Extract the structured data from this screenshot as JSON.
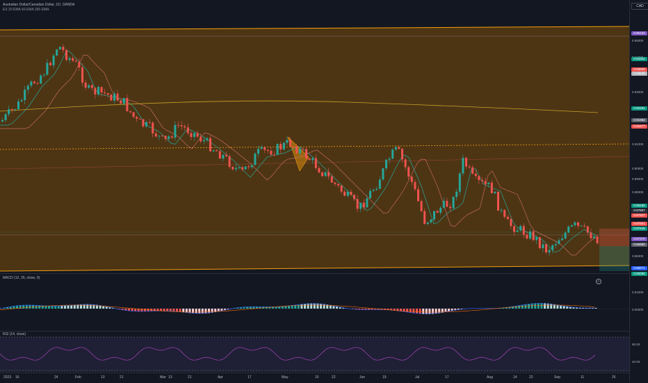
{
  "header": {
    "symbol_line": "Australian Dollar/Canadian Dollar, 1D, OANDA",
    "indicator_line": "EX 20 EMA 50 EMA 200 EMA"
  },
  "currency": "CAD",
  "colors": {
    "up": "#26a69a",
    "down": "#ef5350",
    "band_fill": "#5c3d12",
    "band_edge": "#f59e0b"
  },
  "price_badges": [
    {
      "label": "0.95134",
      "color": "#7e57c2"
    },
    {
      "label": "0.94304",
      "color": "#089981"
    },
    {
      "label": "0.93858",
      "color": "#ef5350"
    },
    {
      "label": "0.93645",
      "color": "#b2b5be"
    },
    {
      "label": "0.92281",
      "color": "#089981"
    },
    {
      "label": "0.91982",
      "color": "#5d606b"
    },
    {
      "label": "0.91577",
      "color": "#ef5350"
    },
    {
      "label": "0.88186",
      "color": "#089981"
    },
    {
      "label": "0.87857",
      "color": "#2a2e39"
    },
    {
      "label": "0.87827",
      "color": "#ef5350"
    },
    {
      "label": "0.87601",
      "color": "#ef5350"
    },
    {
      "label": "0.87545",
      "color": "#089981"
    },
    {
      "label": "0.87370",
      "color": "#7e57c2"
    },
    {
      "label": "0.86880",
      "color": "#5d606b"
    },
    {
      "label": "0.85571",
      "color": "#2962ff"
    },
    {
      "label": "0.85080",
      "color": "#089981"
    }
  ],
  "price_ticks": [
    "0.95000",
    "0.94000",
    "0.93000",
    "0.92000",
    "0.91000",
    "0.90000",
    "0.89000",
    "0.88000",
    "0.86000"
  ],
  "macd": {
    "title": "MACD (12, 26, close, 9)",
    "ticks": [
      "0.01000",
      "0.00000"
    ]
  },
  "rsi": {
    "title": "RSI (14, close)",
    "ticks": [
      "60.00",
      "40.00"
    ]
  },
  "time_ticks": [
    "2023",
    "16",
    "24",
    "Feb",
    "13",
    "21",
    "Mar",
    "13",
    "21",
    "Apr",
    "17",
    "May",
    "15",
    "22",
    "Jun",
    "19",
    "Jul",
    "17",
    "Aug",
    "14",
    "22",
    "Sep",
    "11",
    "25"
  ],
  "countdown": "23:21:10"
}
